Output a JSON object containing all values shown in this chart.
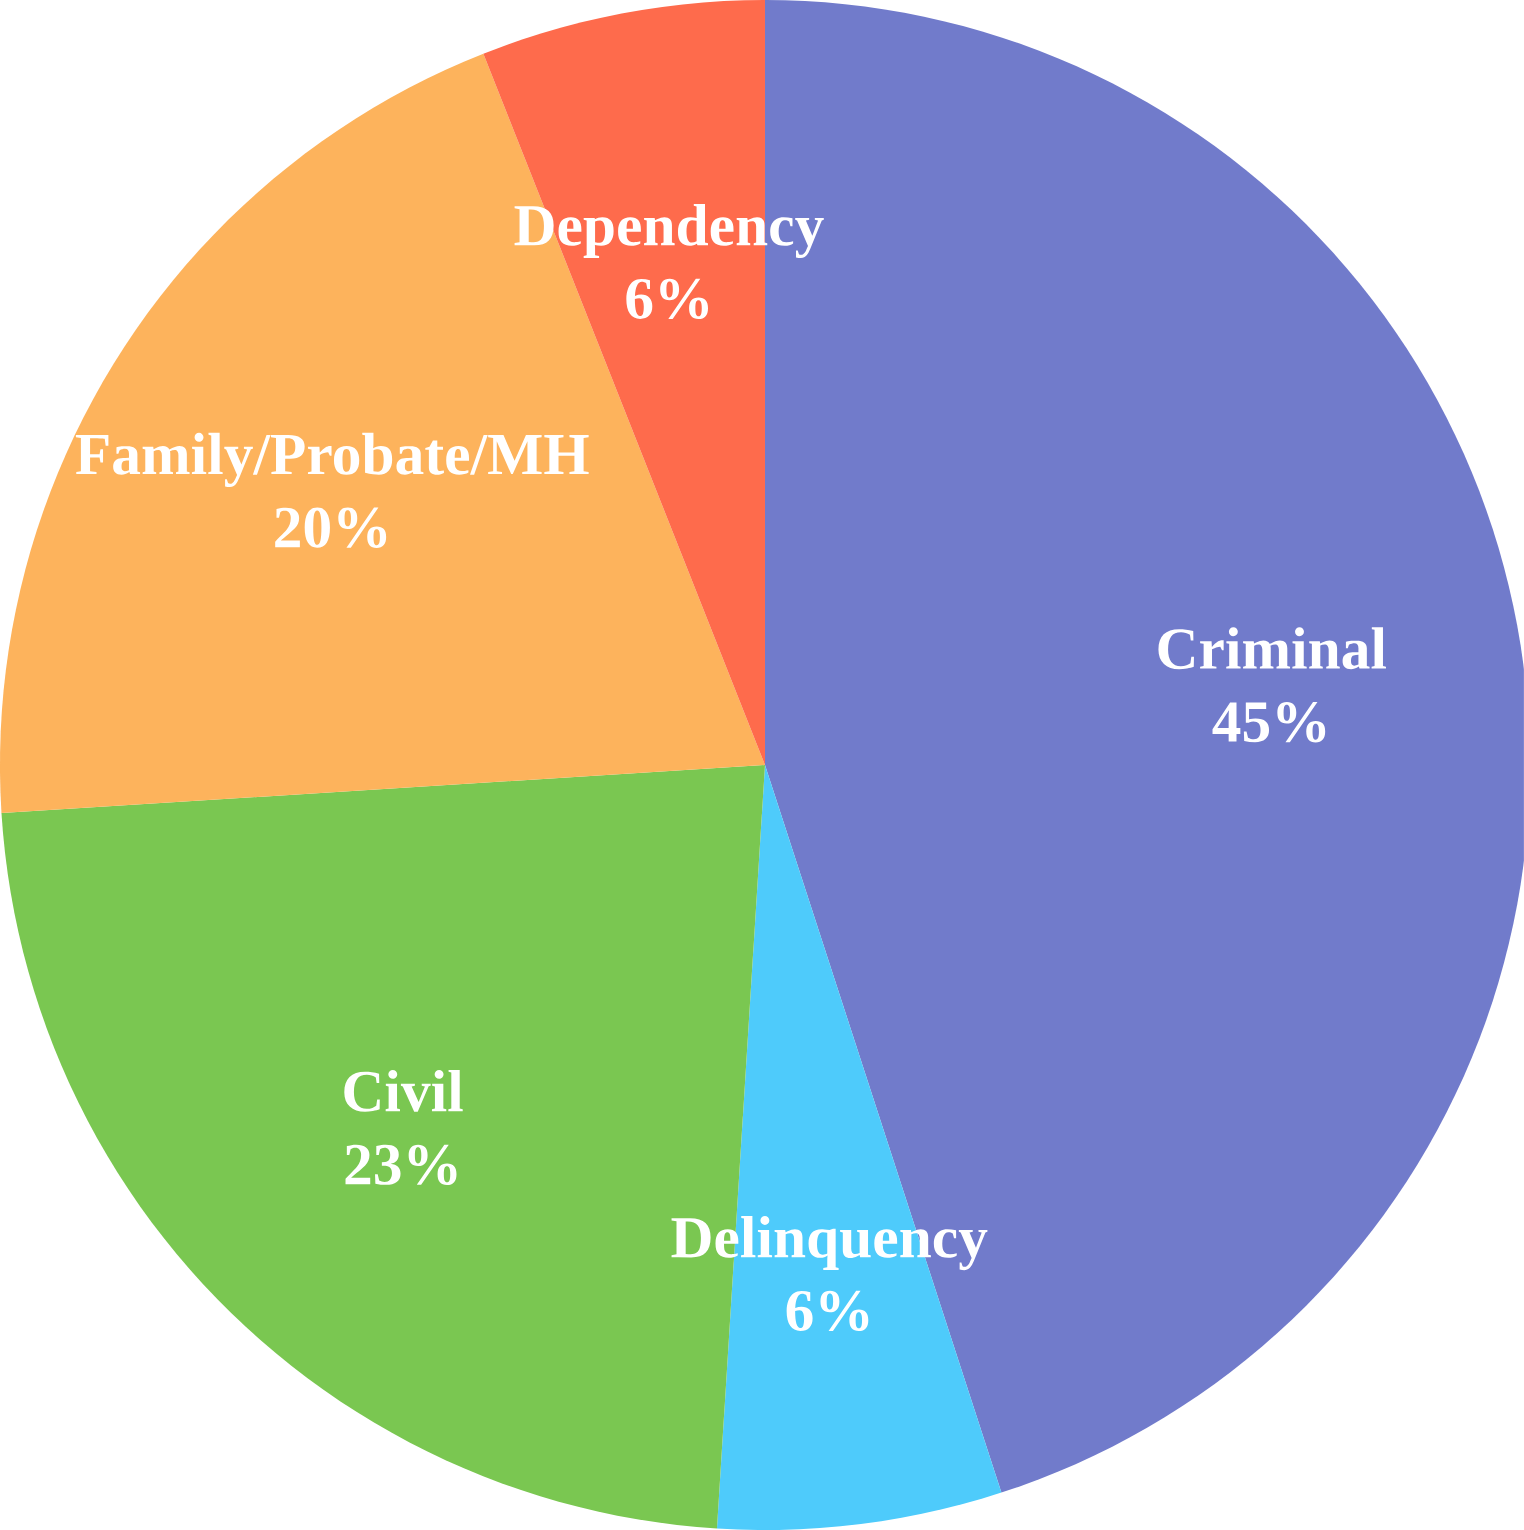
{
  "chart_data": {
    "type": "pie",
    "categories": [
      "Criminal",
      "Delinquency",
      "Civil",
      "Family/Probate/MH",
      "Dependency"
    ],
    "values": [
      45,
      6,
      23,
      20,
      6
    ],
    "value_labels": [
      "45%",
      "6%",
      "23%",
      "20%",
      "6%"
    ],
    "colors": [
      "#717bcb",
      "#4ecbfb",
      "#7ac751",
      "#fdb35c",
      "#fe6b4c"
    ]
  }
}
